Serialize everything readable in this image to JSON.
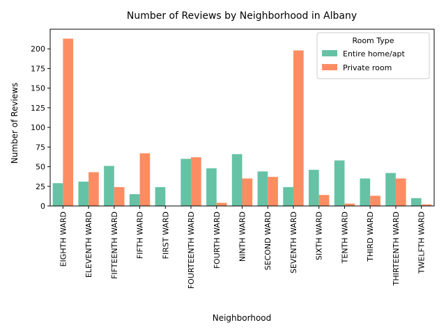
{
  "chart_data": {
    "type": "bar",
    "title": "Number of Reviews by Neighborhood in Albany",
    "xlabel": "Neighborhood",
    "ylabel": "Number of Reviews",
    "ylim": [
      0,
      225
    ],
    "yticks": [
      0,
      25,
      50,
      75,
      100,
      125,
      150,
      175,
      200
    ],
    "grid": false,
    "legend": {
      "title": "Room Type",
      "placement": "top-right"
    },
    "categories": [
      "EIGHTH WARD",
      "ELEVENTH WARD",
      "FIFTEENTH WARD",
      "FIFTH WARD",
      "FIRST WARD",
      "FOURTEENTH WARD",
      "FOURTH WARD",
      "NINTH WARD",
      "SECOND WARD",
      "SEVENTH WARD",
      "SIXTH WARD",
      "TENTH WARD",
      "THIRD WARD",
      "THIRTEENTH WARD",
      "TWELFTH WARD"
    ],
    "series": [
      {
        "name": "Entire home/apt",
        "color": "#66c2a5",
        "values": [
          29,
          31,
          51,
          15,
          24,
          60,
          48,
          66,
          44,
          24,
          46,
          58,
          35,
          42,
          10
        ]
      },
      {
        "name": "Private room",
        "color": "#fc8d62",
        "values": [
          213,
          43,
          24,
          67,
          0,
          62,
          4,
          35,
          37,
          198,
          14,
          3,
          13,
          35,
          2
        ]
      }
    ]
  }
}
